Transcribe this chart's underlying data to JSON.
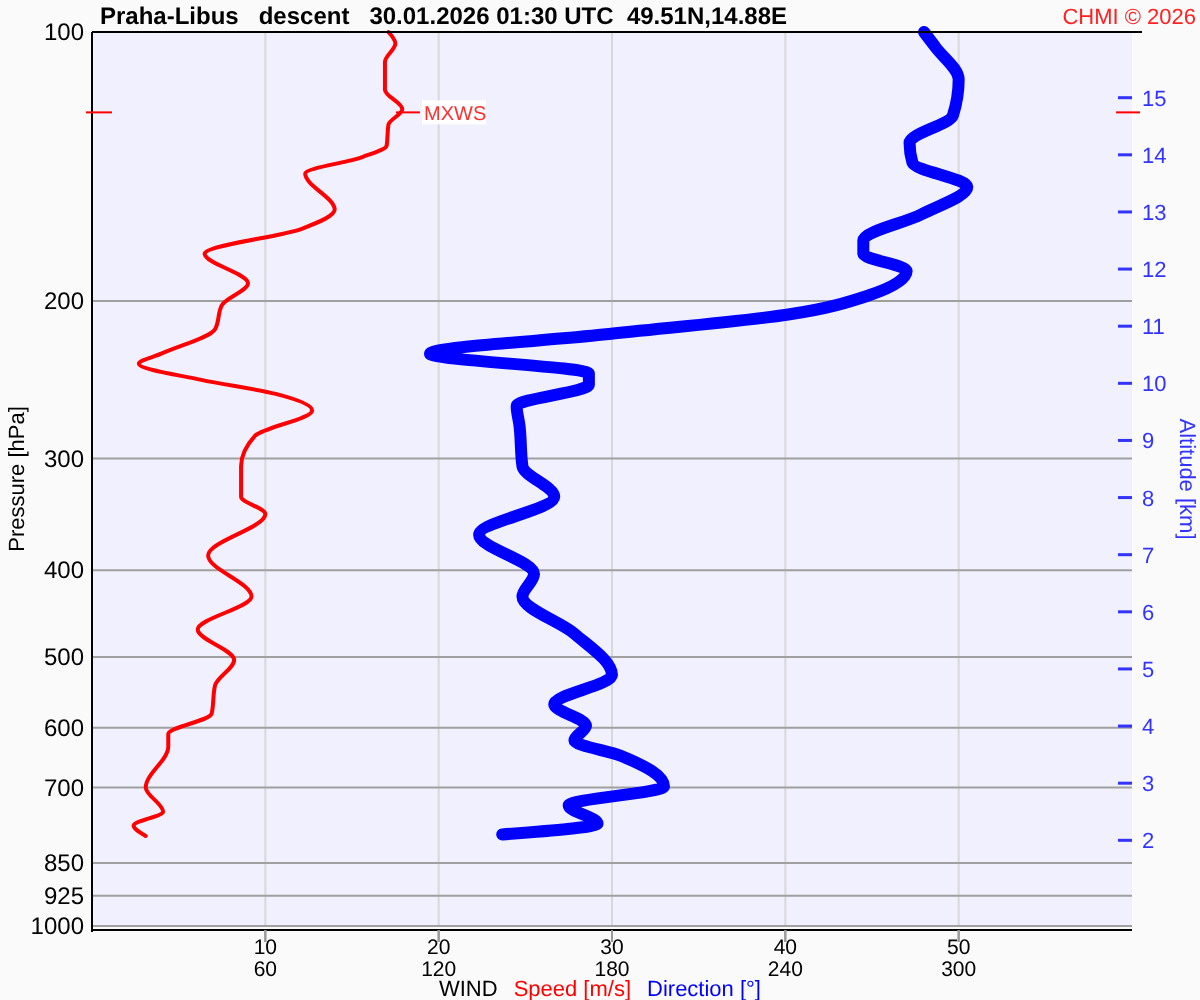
{
  "chart_data": {
    "type": "line",
    "orientation": "horizontal",
    "title": "Praha-Libus   descent   30.01.2026 01:30 UTC  49.51N,14.88E",
    "xlabel": "WIND",
    "ylabel": "Pressure [hPa]",
    "y2label": "Altitude [km]",
    "annotations": [
      "CHMI © 2026",
      {
        "text": "MXWS",
        "x": 18,
        "y": 123
      }
    ],
    "log": "y",
    "grid": true,
    "legend": "bottom",
    "xlim": [
      0,
      60
    ],
    "xticks": [
      10,
      20,
      30,
      40,
      50
    ],
    "x2lim": [
      0,
      360
    ],
    "x2ticks": [
      60,
      120,
      180,
      240,
      300
    ],
    "ylim": [
      1000,
      100
    ],
    "yticks": [
      100,
      200,
      300,
      400,
      500,
      600,
      700,
      850,
      925,
      1000
    ],
    "y2lim": [
      0.5,
      16.15
    ],
    "y2ticks": [
      2,
      3,
      4,
      5,
      6,
      7,
      8,
      9,
      10,
      11,
      12,
      13,
      14,
      15
    ],
    "series": [
      {
        "name": "Speed [m/s]",
        "color": "#ff0000",
        "values": [
          17.1,
          17.5,
          16.9,
          16.9,
          17.9,
          17.1,
          17.0,
          15.6,
          12.3,
          14.0,
          12.1,
          6.5,
          9.0,
          7.5,
          7.1,
          4.0,
          2.7,
          6.3,
          10.6,
          12.7,
          9.4,
          8.6,
          8.6,
          10.0,
          6.7,
          9.2,
          6.1,
          8.2,
          7.1,
          6.9,
          4.4,
          4.4,
          3.1,
          4.1,
          2.4,
          3.1
        ],
        "x": [
          100,
          103,
          108,
          116,
          122,
          127,
          134,
          138,
          144,
          158,
          166,
          177,
          191,
          202,
          215,
          229,
          235,
          245,
          254,
          265,
          283,
          306,
          331,
          346,
          385,
          428,
          466,
          504,
          538,
          579,
          610,
          630,
          700,
          745,
          772,
          793
        ]
      },
      {
        "name": "Direction [°]",
        "color": "#0000ff",
        "axis": "x2",
        "values": [
          288,
          292,
          300,
          298,
          283,
          284,
          303,
          287,
          267,
          267,
          282,
          269,
          241,
          177,
          117,
          172,
          172,
          147,
          148,
          149,
          160,
          134,
          153,
          149,
          167,
          180,
          160,
          171,
          167,
          183,
          198,
          165,
          175,
          142
        ],
        "x": [
          100,
          104,
          113,
          124,
          133,
          140,
          149,
          160,
          171,
          177,
          185,
          197,
          207,
          218,
          229,
          241,
          248,
          262,
          276,
          306,
          331,
          365,
          404,
          428,
          471,
          524,
          565,
          597,
          620,
          645,
          698,
          733,
          768,
          790
        ]
      }
    ]
  }
}
